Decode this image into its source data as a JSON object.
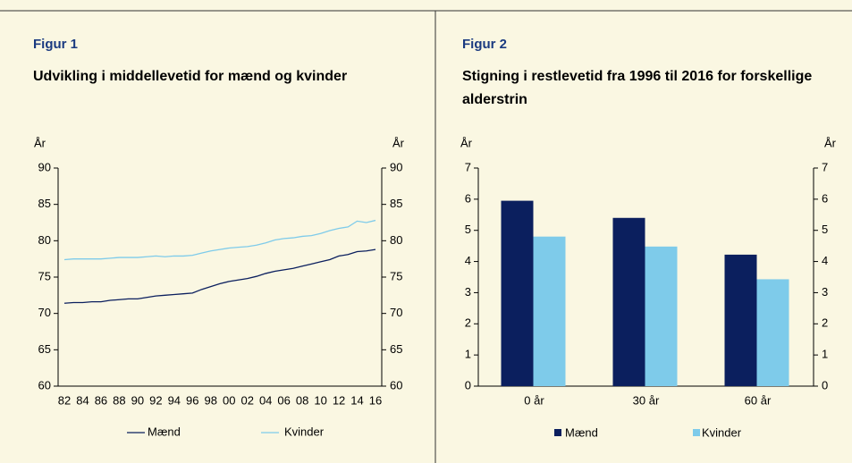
{
  "chart_data": [
    {
      "type": "line",
      "label": "Figur 1",
      "title": "Udvikling i middellevetid for mænd og kvinder",
      "ylabel": "År",
      "y2label": "År",
      "categories": [
        "82",
        null,
        "84",
        null,
        "86",
        null,
        "88",
        null,
        "90",
        null,
        "92",
        null,
        "94",
        null,
        "96",
        null,
        "98",
        null,
        "00",
        null,
        "02",
        null,
        "04",
        null,
        "06",
        null,
        "08",
        null,
        "10",
        null,
        "12",
        null,
        "14",
        null,
        "16"
      ],
      "series": [
        {
          "name": "Mænd",
          "color": "#0b1f5e",
          "values": [
            71.4,
            71.5,
            71.5,
            71.6,
            71.6,
            71.8,
            71.9,
            72.0,
            72.0,
            72.2,
            72.4,
            72.5,
            72.6,
            72.7,
            72.8,
            73.3,
            73.7,
            74.1,
            74.4,
            74.6,
            74.8,
            75.1,
            75.5,
            75.8,
            76.0,
            76.2,
            76.5,
            76.8,
            77.1,
            77.4,
            77.9,
            78.1,
            78.5,
            78.6,
            78.8
          ]
        },
        {
          "name": "Kvinder",
          "color": "#7ecbea",
          "values": [
            77.4,
            77.5,
            77.5,
            77.5,
            77.5,
            77.6,
            77.7,
            77.7,
            77.7,
            77.8,
            77.9,
            77.8,
            77.9,
            77.9,
            78.0,
            78.3,
            78.6,
            78.8,
            79.0,
            79.1,
            79.2,
            79.4,
            79.7,
            80.1,
            80.3,
            80.4,
            80.6,
            80.7,
            81.0,
            81.4,
            81.7,
            81.9,
            82.7,
            82.5,
            82.8
          ]
        }
      ],
      "ylim": [
        60,
        90
      ],
      "yticks": [
        60,
        65,
        70,
        75,
        80,
        85,
        90
      ],
      "y2lim": [
        60,
        90
      ],
      "y2ticks": [
        60,
        65,
        70,
        75,
        80,
        85,
        90
      ]
    },
    {
      "type": "bar",
      "label": "Figur 2",
      "title": "Stigning i restlevetid fra 1996 til 2016 for forskellige alderstrin",
      "ylabel": "År",
      "y2label": "År",
      "categories": [
        "0 år",
        "30 år",
        "60 år"
      ],
      "series": [
        {
          "name": "Mænd",
          "color": "#0b1f5e",
          "values": [
            5.95,
            5.4,
            4.22
          ]
        },
        {
          "name": "Kvinder",
          "color": "#7ecbea",
          "values": [
            4.8,
            4.48,
            3.43
          ]
        }
      ],
      "ylim": [
        0,
        7
      ],
      "yticks": [
        0,
        1,
        2,
        3,
        4,
        5,
        6,
        7
      ],
      "y2lim": [
        0,
        7
      ],
      "y2ticks": [
        0,
        1,
        2,
        3,
        4,
        5,
        6,
        7
      ]
    }
  ]
}
